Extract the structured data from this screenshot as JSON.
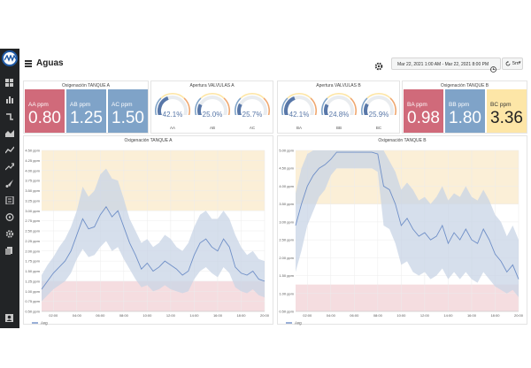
{
  "header": {
    "title": "Aguas",
    "time_range": "Mar 22, 2021 1:00 AM - Mar 22, 2021 8:00 PM",
    "refresh": "5m"
  },
  "icons": {
    "menu": "hamburger-icon",
    "settings": "gear-icon",
    "time": "clock-icon",
    "refresh": "refresh-icon",
    "sidebar": [
      "dashboards-icon",
      "bar-chart-icon",
      "pipe-icon",
      "area-chart-icon",
      "line-chart-icon",
      "trend-icon",
      "brush-icon",
      "list-icon",
      "explore-icon",
      "settings-icon",
      "documents-icon",
      "user-icon"
    ]
  },
  "colors": {
    "red": "#d06a7a",
    "blue": "#7fa3c8",
    "gold": "#fde6a7",
    "line": "#6f8fc7",
    "band": "#c8d4e6"
  },
  "panels": {
    "tank_a_stats": {
      "title": "Oxigenación TANQUE A",
      "stats": [
        {
          "label": "AA ppm",
          "value": "0.80",
          "color": "#d06a7a"
        },
        {
          "label": "AB ppm",
          "value": "1.25",
          "color": "#7fa3c8"
        },
        {
          "label": "AC ppm",
          "value": "1.50",
          "color": "#7fa3c8"
        }
      ]
    },
    "valves_a": {
      "title": "Apertura VALVULAS A",
      "gauges": [
        {
          "label": "AA",
          "text": "42.1%",
          "value": 42.1
        },
        {
          "label": "AB",
          "text": "25.0%",
          "value": 25.0
        },
        {
          "label": "AC",
          "text": "25.7%",
          "value": 25.7
        }
      ]
    },
    "valves_b": {
      "title": "Apertura VALVULAS B",
      "gauges": [
        {
          "label": "BA",
          "text": "42.1%",
          "value": 42.1
        },
        {
          "label": "BB",
          "text": "24.8%",
          "value": 24.8
        },
        {
          "label": "BC",
          "text": "25.9%",
          "value": 25.9
        }
      ]
    },
    "tank_b_stats": {
      "title": "Oxigenación TANQUE B",
      "stats": [
        {
          "label": "BA ppm",
          "value": "0.98",
          "color": "#d06a7a"
        },
        {
          "label": "BB ppm",
          "value": "1.80",
          "color": "#7fa3c8"
        },
        {
          "label": "BC ppm",
          "value": "3.36",
          "color": "#fde6a7"
        }
      ]
    }
  },
  "chart_data": [
    {
      "type": "line",
      "title": "Oxigenación TANQUE A",
      "legend": [
        "Avg"
      ],
      "legend_position": "bottom-left",
      "xticks": [
        "02:00",
        "04:00",
        "06:00",
        "08:00",
        "10:00",
        "12:00",
        "14:00",
        "16:00",
        "18:00",
        "20:00"
      ],
      "yticks": [
        "0.50 ppm",
        "0.75 ppm",
        "1.00 ppm",
        "1.25 ppm",
        "1.50 ppm",
        "1.75 ppm",
        "2.00 ppm",
        "2.25 ppm",
        "2.50 ppm",
        "2.75 ppm",
        "3.00 ppm",
        "3.25 ppm",
        "3.50 ppm",
        "3.75 ppm",
        "4.00 ppm",
        "4.25 ppm",
        "4.50 ppm"
      ],
      "ylim": [
        0.5,
        4.5
      ],
      "xlim": [
        1,
        20
      ],
      "thresholds": [
        {
          "from": 0.5,
          "to": 1.25,
          "color": "#f5dde0"
        },
        {
          "from": 3.0,
          "to": 4.5,
          "color": "#fbefd7"
        }
      ],
      "series": [
        {
          "name": "Avg",
          "x": [
            1.0,
            1.5,
            2.0,
            2.5,
            3.0,
            3.5,
            4.0,
            4.5,
            5.0,
            5.5,
            6.0,
            6.5,
            7.0,
            7.5,
            8.0,
            8.5,
            9.0,
            9.5,
            10.0,
            10.5,
            11.0,
            11.5,
            12.0,
            12.5,
            13.0,
            13.5,
            14.0,
            14.5,
            15.0,
            15.5,
            16.0,
            16.5,
            17.0,
            17.5,
            18.0,
            18.5,
            19.0,
            19.5,
            20.0
          ],
          "values": [
            1.05,
            1.25,
            1.45,
            1.6,
            1.75,
            2.0,
            2.4,
            2.8,
            2.55,
            2.6,
            2.9,
            3.1,
            2.85,
            3.0,
            2.6,
            2.2,
            1.9,
            1.55,
            1.7,
            1.5,
            1.6,
            1.75,
            1.65,
            1.55,
            1.4,
            1.5,
            1.9,
            2.2,
            2.3,
            2.1,
            2.0,
            2.3,
            2.1,
            1.6,
            1.45,
            1.4,
            1.5,
            1.3,
            1.25
          ],
          "upper": [
            1.4,
            1.65,
            1.85,
            2.1,
            2.3,
            2.6,
            3.0,
            3.6,
            3.35,
            3.5,
            3.9,
            4.05,
            3.8,
            3.75,
            3.3,
            2.8,
            2.5,
            2.2,
            2.3,
            2.1,
            2.2,
            2.4,
            2.3,
            2.1,
            2.0,
            2.2,
            2.6,
            2.9,
            3.0,
            2.8,
            2.8,
            3.0,
            2.8,
            2.4,
            2.1,
            1.9,
            2.0,
            1.8,
            1.75
          ],
          "lower": [
            0.75,
            0.9,
            1.05,
            1.15,
            1.25,
            1.45,
            1.8,
            2.05,
            1.85,
            1.9,
            2.1,
            2.25,
            2.0,
            2.1,
            1.8,
            1.55,
            1.3,
            1.1,
            1.15,
            1.0,
            1.05,
            1.15,
            1.05,
            1.0,
            0.95,
            1.0,
            1.3,
            1.5,
            1.6,
            1.45,
            1.35,
            1.6,
            1.45,
            1.1,
            1.0,
            0.95,
            1.05,
            0.9,
            0.85
          ]
        }
      ]
    },
    {
      "type": "line",
      "title": "Oxigenación TANQUE B",
      "legend": [
        "Avg"
      ],
      "legend_position": "bottom-left",
      "xticks": [
        "02:00",
        "04:00",
        "06:00",
        "08:00",
        "10:00",
        "12:00",
        "14:00",
        "16:00",
        "18:00",
        "20:00"
      ],
      "yticks": [
        "0.50 ppm",
        "1.00 ppm",
        "1.50 ppm",
        "2.00 ppm",
        "2.50 ppm",
        "3.00 ppm",
        "3.50 ppm",
        "4.00 ppm",
        "4.50 ppm",
        "5.00 ppm"
      ],
      "ylim": [
        0.5,
        5.0
      ],
      "xlim": [
        1,
        20
      ],
      "thresholds": [
        {
          "from": 0.5,
          "to": 1.25,
          "color": "#f5dde0"
        },
        {
          "from": 3.5,
          "to": 5.0,
          "color": "#fbefd7"
        }
      ],
      "series": [
        {
          "name": "Avg",
          "x": [
            1.0,
            1.5,
            2.0,
            2.5,
            3.0,
            3.5,
            4.0,
            4.5,
            5.0,
            5.5,
            6.0,
            6.5,
            7.0,
            7.5,
            8.0,
            8.5,
            9.0,
            9.5,
            10.0,
            10.5,
            11.0,
            11.5,
            12.0,
            12.5,
            13.0,
            13.5,
            14.0,
            14.5,
            15.0,
            15.5,
            16.0,
            16.5,
            17.0,
            17.5,
            18.0,
            18.5,
            19.0,
            19.5,
            20.0
          ],
          "values": [
            2.9,
            3.5,
            4.0,
            4.3,
            4.5,
            4.6,
            4.75,
            4.95,
            4.95,
            4.95,
            4.95,
            4.95,
            4.95,
            4.95,
            4.9,
            4.0,
            3.9,
            3.5,
            2.9,
            3.1,
            2.8,
            2.6,
            2.7,
            2.5,
            2.6,
            2.9,
            2.4,
            2.7,
            2.5,
            2.8,
            2.5,
            2.4,
            2.8,
            2.5,
            2.1,
            1.9,
            1.6,
            1.8,
            1.4
          ],
          "upper": [
            3.8,
            4.5,
            4.9,
            5.0,
            5.0,
            5.0,
            5.0,
            5.0,
            5.0,
            5.0,
            5.0,
            5.0,
            5.0,
            5.0,
            5.0,
            5.0,
            4.7,
            4.4,
            3.9,
            4.1,
            3.9,
            3.6,
            3.7,
            3.5,
            3.7,
            4.0,
            3.6,
            3.8,
            3.7,
            4.0,
            3.7,
            3.6,
            3.9,
            3.6,
            3.2,
            3.0,
            2.6,
            2.9,
            2.5
          ],
          "lower": [
            1.6,
            2.2,
            2.9,
            3.3,
            3.7,
            3.9,
            4.3,
            4.5,
            4.5,
            4.5,
            4.5,
            4.5,
            4.5,
            4.5,
            4.4,
            2.9,
            2.8,
            2.4,
            1.8,
            1.9,
            1.6,
            1.5,
            1.6,
            1.4,
            1.5,
            1.7,
            1.4,
            1.6,
            1.4,
            1.6,
            1.4,
            1.3,
            1.6,
            1.4,
            1.2,
            1.1,
            1.0,
            1.1,
            0.9
          ]
        }
      ]
    }
  ]
}
